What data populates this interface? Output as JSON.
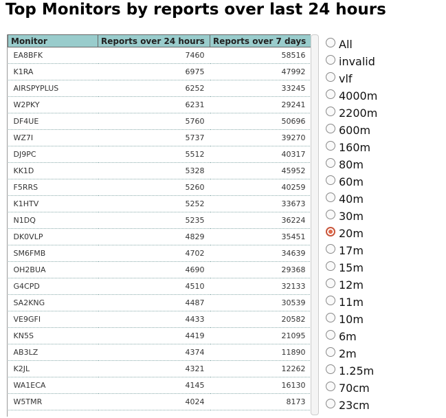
{
  "title": "Top Monitors by reports over last 24 hours",
  "table": {
    "headers": [
      "Monitor",
      "Reports over 24 hours",
      "Reports over 7 days"
    ],
    "rows": [
      [
        "EA8BFK",
        7460,
        58516
      ],
      [
        "K1RA",
        6975,
        47992
      ],
      [
        "AIRSPYPLUS",
        6252,
        33245
      ],
      [
        "W2PKY",
        6231,
        29241
      ],
      [
        "DF4UE",
        5760,
        50696
      ],
      [
        "WZ7I",
        5737,
        39270
      ],
      [
        "DJ9PC",
        5512,
        40317
      ],
      [
        "KK1D",
        5328,
        45952
      ],
      [
        "F5RRS",
        5260,
        40259
      ],
      [
        "K1HTV",
        5252,
        33673
      ],
      [
        "N1DQ",
        5235,
        36224
      ],
      [
        "DK0VLP",
        4829,
        35451
      ],
      [
        "SM6FMB",
        4702,
        34639
      ],
      [
        "OH2BUA",
        4690,
        29368
      ],
      [
        "G4CPD",
        4510,
        32133
      ],
      [
        "SA2KNG",
        4487,
        30539
      ],
      [
        "VE9GFI",
        4433,
        20582
      ],
      [
        "KN5S",
        4419,
        21095
      ],
      [
        "AB3LZ",
        4374,
        11890
      ],
      [
        "K2JL",
        4321,
        12262
      ],
      [
        "WA1ECA",
        4145,
        16130
      ],
      [
        "W5TMR",
        4024,
        8173
      ]
    ]
  },
  "bands": [
    "All",
    "invalid",
    "vlf",
    "4000m",
    "2200m",
    "600m",
    "160m",
    "80m",
    "60m",
    "40m",
    "30m",
    "20m",
    "17m",
    "15m",
    "12m",
    "11m",
    "10m",
    "6m",
    "2m",
    "1.25m",
    "70cm",
    "23cm"
  ],
  "selected_band": "20m"
}
